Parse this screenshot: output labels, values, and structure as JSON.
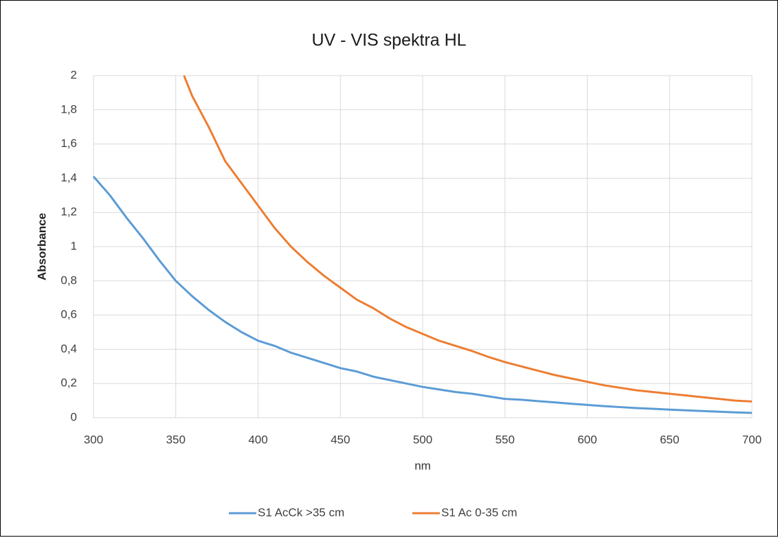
{
  "chart_data": {
    "type": "line",
    "title": "UV - VIS spektra HL",
    "xlabel": "nm",
    "ylabel": "Absorbance",
    "xlim": [
      300,
      700
    ],
    "xticks": [
      300,
      350,
      400,
      450,
      500,
      550,
      600,
      650,
      700
    ],
    "ylim": [
      0,
      2
    ],
    "yticks": [
      0,
      {
        "value": 0.2,
        "label": "0,2"
      },
      {
        "value": 0.4,
        "label": "0,4"
      },
      {
        "value": 0.6,
        "label": "0,6"
      },
      {
        "value": 0.8,
        "label": "0,8"
      },
      1,
      {
        "value": 1.2,
        "label": "1,2"
      },
      {
        "value": 1.4,
        "label": "1,4"
      },
      {
        "value": 1.6,
        "label": "1,6"
      },
      {
        "value": 1.8,
        "label": "1,8"
      },
      2
    ],
    "grid": true,
    "legend": "bottom",
    "series": [
      {
        "name": "S1 AcCk >35 cm",
        "color": "#5b9bd5",
        "x": [
          300,
          310,
          320,
          330,
          340,
          350,
          360,
          370,
          380,
          390,
          400,
          410,
          420,
          430,
          440,
          450,
          460,
          470,
          480,
          490,
          500,
          510,
          520,
          530,
          540,
          550,
          560,
          570,
          580,
          590,
          600,
          610,
          620,
          630,
          640,
          650,
          660,
          670,
          680,
          690,
          700
        ],
        "values": [
          1.41,
          1.3,
          1.17,
          1.05,
          0.92,
          0.8,
          0.71,
          0.63,
          0.56,
          0.5,
          0.45,
          0.42,
          0.38,
          0.35,
          0.32,
          0.29,
          0.27,
          0.24,
          0.22,
          0.2,
          0.18,
          0.165,
          0.15,
          0.14,
          0.125,
          0.11,
          0.105,
          0.097,
          0.09,
          0.082,
          0.075,
          0.068,
          0.062,
          0.056,
          0.052,
          0.047,
          0.043,
          0.039,
          0.035,
          0.031,
          0.028
        ]
      },
      {
        "name": "S1 Ac 0-35 cm",
        "color": "#ed7d31",
        "x": [
          355,
          360,
          370,
          380,
          390,
          400,
          410,
          420,
          430,
          440,
          450,
          460,
          470,
          480,
          490,
          500,
          510,
          520,
          530,
          540,
          550,
          560,
          570,
          580,
          590,
          600,
          610,
          620,
          630,
          640,
          650,
          660,
          670,
          680,
          690,
          700
        ],
        "values": [
          2.0,
          1.88,
          1.7,
          1.5,
          1.37,
          1.24,
          1.11,
          1.0,
          0.91,
          0.83,
          0.76,
          0.69,
          0.64,
          0.58,
          0.53,
          0.49,
          0.45,
          0.42,
          0.39,
          0.355,
          0.325,
          0.3,
          0.275,
          0.25,
          0.23,
          0.21,
          0.19,
          0.175,
          0.16,
          0.15,
          0.14,
          0.13,
          0.12,
          0.11,
          0.1,
          0.095
        ]
      }
    ]
  }
}
